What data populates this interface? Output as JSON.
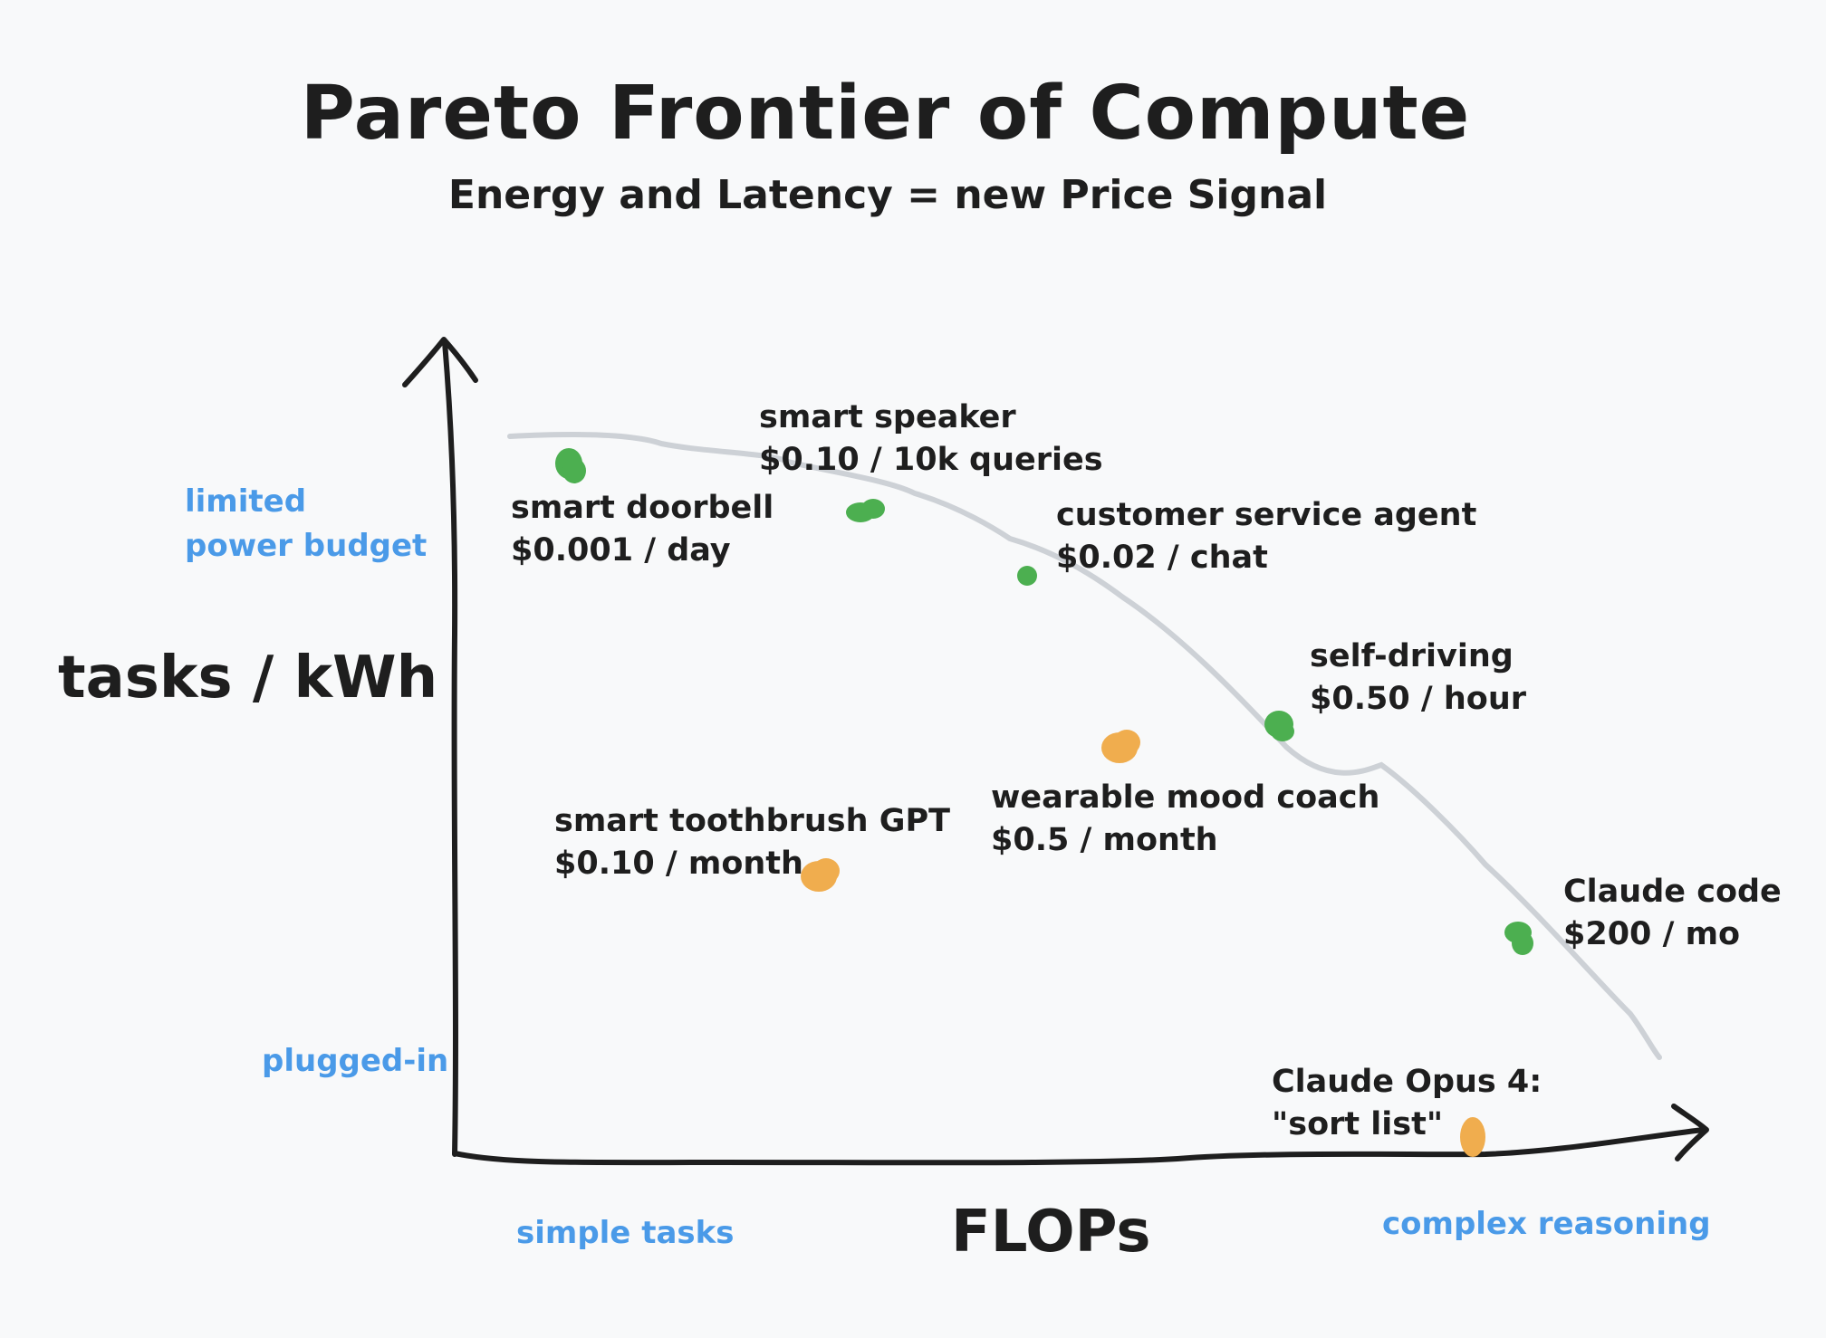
{
  "title": "Pareto Frontier of Compute",
  "subtitle": "Energy and Latency = new Price Signal",
  "axes": {
    "y_label": "tasks / kWh",
    "x_label": "FLOPs",
    "y_top_label": [
      "limited",
      "power budget"
    ],
    "y_bottom_label": "plugged-in",
    "x_left_label": "simple tasks",
    "x_right_label": "complex reasoning"
  },
  "colors": {
    "on_frontier": "#4caf50",
    "below_frontier": "#f0ad4e",
    "frontier_curve": "#cdd1d6",
    "axis": "#1e1e1e",
    "annotation": "#4a9ae8"
  },
  "points": [
    {
      "name": "smart doorbell",
      "price": "$0.001 / day",
      "category": "on_frontier"
    },
    {
      "name": "smart speaker",
      "price": "$0.10 / 10k queries",
      "category": "on_frontier"
    },
    {
      "name": "customer service agent",
      "price": "$0.02 / chat",
      "category": "on_frontier"
    },
    {
      "name": "self-driving",
      "price": "$0.50 / hour",
      "category": "on_frontier"
    },
    {
      "name": "Claude code",
      "price": "$200 / mo",
      "category": "on_frontier"
    },
    {
      "name": "wearable mood coach",
      "price": "$0.5 / month",
      "category": "below_frontier"
    },
    {
      "name": "smart toothbrush GPT",
      "price": "$0.10 / month",
      "category": "below_frontier"
    },
    {
      "name": "Claude Opus 4:",
      "price": "\"sort list\"",
      "category": "below_frontier"
    }
  ]
}
